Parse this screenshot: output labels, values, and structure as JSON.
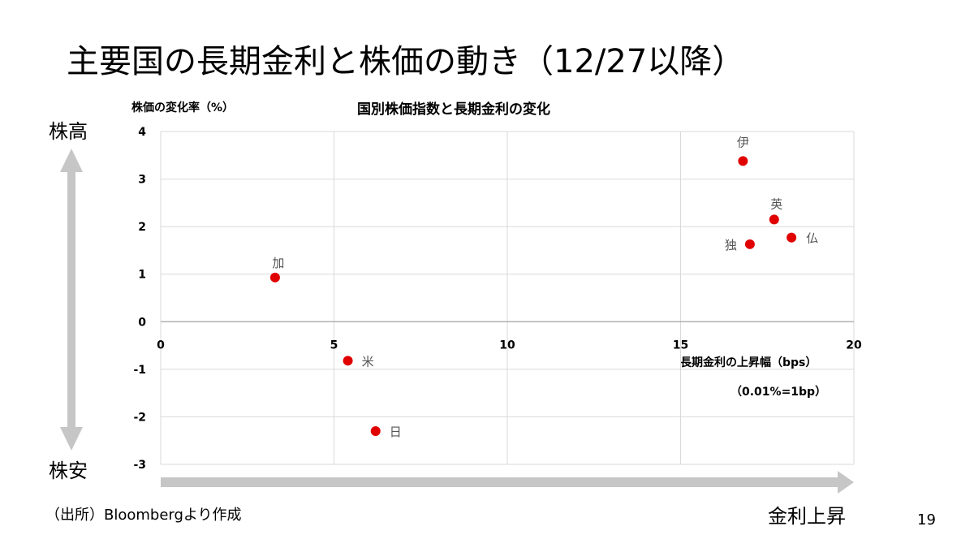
{
  "slide": {
    "title": "主要国の長期金利と株価の動き（12/27以降）",
    "source": "（出所）Bloombergより作成",
    "page_number": "19"
  },
  "annotations": {
    "stock_high": "株高",
    "stock_low": "株安",
    "rate_up": "金利上昇"
  },
  "colors": {
    "point": "#e00000",
    "grid": "#d9d9d9",
    "arrow": "#c6c6c6"
  },
  "chart_data": {
    "type": "scatter",
    "title": "国別株価指数と長期金利の変化",
    "ylabel": "株価の変化率（%）",
    "xlabel": "長期金利の上昇幅（bps）",
    "xlabel_note": "（0.01%=1bp）",
    "xlim": [
      0,
      20
    ],
    "ylim": [
      -3,
      4
    ],
    "xticks": [
      0,
      5,
      10,
      15,
      20
    ],
    "yticks": [
      -3,
      -2,
      -1,
      0,
      1,
      2,
      3,
      4
    ],
    "grid": true,
    "points": [
      {
        "label": "伊",
        "x": 16.8,
        "y": 3.38
      },
      {
        "label": "英",
        "x": 17.7,
        "y": 2.15
      },
      {
        "label": "仏",
        "x": 18.2,
        "y": 1.77
      },
      {
        "label": "独",
        "x": 17.0,
        "y": 1.63
      },
      {
        "label": "加",
        "x": 3.3,
        "y": 0.93
      },
      {
        "label": "米",
        "x": 5.4,
        "y": -0.82
      },
      {
        "label": "日",
        "x": 6.2,
        "y": -2.3
      }
    ]
  }
}
